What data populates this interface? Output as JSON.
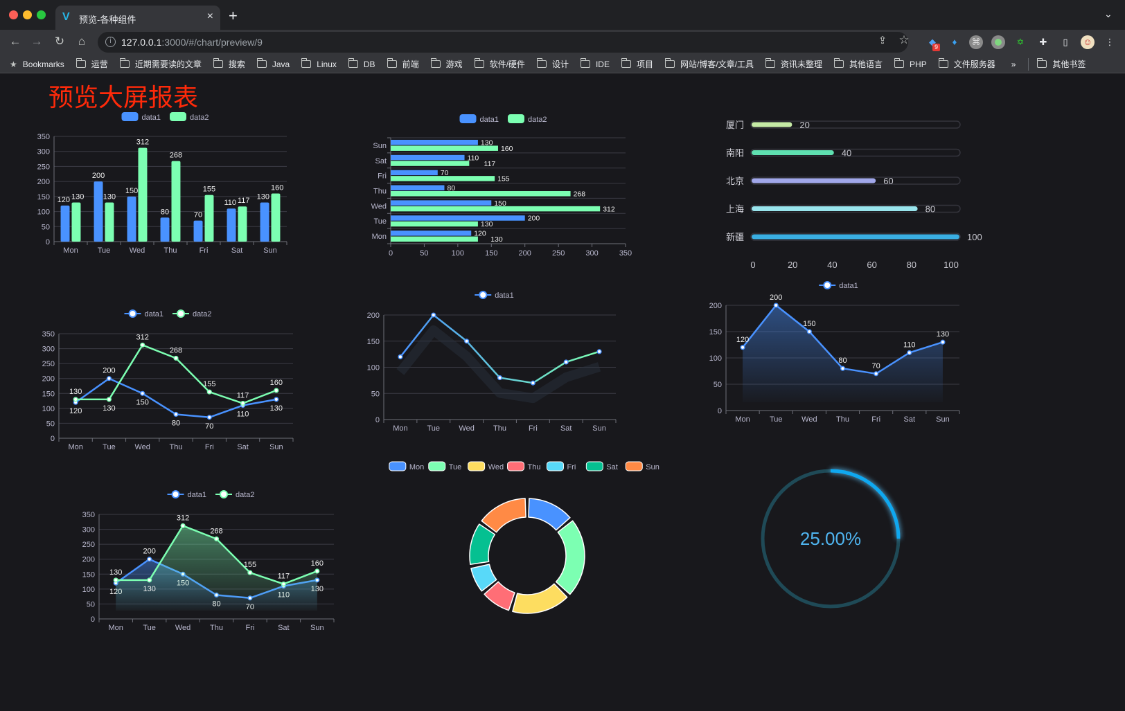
{
  "browser": {
    "tab_title": "预览-各种组件",
    "new_tab": "+",
    "close": "×",
    "url_host": "127.0.0.1",
    "url_rest": ":3000/#/chart/preview/9",
    "bookmarks_label": "Bookmarks",
    "bookmarks": [
      "运营",
      "近期需要读的文章",
      "搜索",
      "Java",
      "Linux",
      "DB",
      "前端",
      "游戏",
      "软件/硬件",
      "设计",
      "IDE",
      "项目",
      "网站/博客/文章/工具",
      "资讯未整理",
      "其他语言",
      "PHP",
      "文件服务器"
    ],
    "overflow": "»",
    "other_bookmarks": "其他书签",
    "extension_badge": "9"
  },
  "page": {
    "title": "预览大屏报表"
  },
  "chart_data": [
    {
      "type": "bar",
      "categories": [
        "Mon",
        "Tue",
        "Wed",
        "Thu",
        "Fri",
        "Sat",
        "Sun"
      ],
      "series": [
        {
          "name": "data1",
          "values": [
            120,
            200,
            150,
            80,
            70,
            110,
            130
          ],
          "color": "#4992ff"
        },
        {
          "name": "data2",
          "values": [
            130,
            130,
            312,
            268,
            155,
            117,
            160
          ],
          "color": "#7cffb2"
        }
      ],
      "ylim": [
        0,
        350
      ],
      "y_ticks": [
        0,
        50,
        100,
        150,
        200,
        250,
        300,
        350
      ],
      "grid": true,
      "legend": "top-center",
      "data_labels": true
    },
    {
      "type": "bar",
      "orientation": "horizontal",
      "categories": [
        "Mon",
        "Tue",
        "Wed",
        "Thu",
        "Fri",
        "Sat",
        "Sun"
      ],
      "series": [
        {
          "name": "data1",
          "values": [
            120,
            200,
            150,
            80,
            70,
            110,
            130
          ],
          "color": "#4992ff"
        },
        {
          "name": "data2",
          "values": [
            130,
            130,
            312,
            268,
            155,
            117,
            160
          ],
          "color": "#7cffb2"
        }
      ],
      "xlim": [
        0,
        350
      ],
      "x_ticks": [
        0,
        50,
        100,
        150,
        200,
        250,
        300,
        350
      ],
      "grid": true,
      "legend": "top-center",
      "data_labels": true
    },
    {
      "type": "bar",
      "orientation": "horizontal",
      "style": "progress",
      "categories": [
        "厦门",
        "南阳",
        "北京",
        "上海",
        "新疆"
      ],
      "values": [
        20,
        40,
        60,
        80,
        100
      ],
      "colors": [
        "#c6eba6",
        "#5fe0b1",
        "#a1a7ea",
        "#98e4ec",
        "#3aaee2"
      ],
      "xlim": [
        0,
        100
      ],
      "x_ticks": [
        0,
        20,
        40,
        60,
        80,
        100
      ],
      "data_labels": true
    },
    {
      "type": "line",
      "categories": [
        "Mon",
        "Tue",
        "Wed",
        "Thu",
        "Fri",
        "Sat",
        "Sun"
      ],
      "series": [
        {
          "name": "data1",
          "values": [
            120,
            200,
            150,
            80,
            70,
            110,
            130
          ],
          "color": "#4992ff"
        },
        {
          "name": "data2",
          "values": [
            130,
            130,
            312,
            268,
            155,
            117,
            160
          ],
          "color": "#7cffb2"
        }
      ],
      "ylim": [
        0,
        350
      ],
      "y_ticks": [
        0,
        50,
        100,
        150,
        200,
        250,
        300,
        350
      ],
      "grid": true,
      "legend": "top-center",
      "data_labels": true
    },
    {
      "type": "line",
      "style": "gradient-shadow",
      "categories": [
        "Mon",
        "Tue",
        "Wed",
        "Thu",
        "Fri",
        "Sat",
        "Sun"
      ],
      "series": [
        {
          "name": "data1",
          "values": [
            120,
            200,
            150,
            80,
            70,
            110,
            130
          ],
          "color": "#4992ff",
          "color_end": "#7cffb2"
        }
      ],
      "ylim": [
        0,
        200
      ],
      "y_ticks": [
        0,
        50,
        100,
        150,
        200
      ],
      "grid": true,
      "legend": "top-center",
      "data_labels": false
    },
    {
      "type": "area",
      "categories": [
        "Mon",
        "Tue",
        "Wed",
        "Thu",
        "Fri",
        "Sat",
        "Sun"
      ],
      "series": [
        {
          "name": "data1",
          "values": [
            120,
            200,
            150,
            80,
            70,
            110,
            130
          ],
          "color": "#4992ff"
        }
      ],
      "ylim": [
        0,
        200
      ],
      "y_ticks": [
        0,
        50,
        100,
        150,
        200
      ],
      "grid": true,
      "legend": "top-center",
      "data_labels": true
    },
    {
      "type": "pie",
      "style": "donut",
      "categories": [
        "Mon",
        "Tue",
        "Wed",
        "Thu",
        "Fri",
        "Sat",
        "Sun"
      ],
      "values": [
        120,
        200,
        150,
        80,
        70,
        110,
        130
      ],
      "colors": [
        "#4992ff",
        "#7cffb2",
        "#fddd60",
        "#ff6e76",
        "#58d9f9",
        "#05c091",
        "#ff8a45"
      ],
      "legend": "top-center"
    },
    {
      "type": "gauge",
      "style": "ring",
      "value": 25,
      "label": "25.00%",
      "colors": {
        "track": "#1f4a57",
        "progress": "#0fa8f0",
        "text": "#4fb4ef"
      }
    },
    {
      "type": "area",
      "categories": [
        "Mon",
        "Tue",
        "Wed",
        "Thu",
        "Fri",
        "Sat",
        "Sun"
      ],
      "series": [
        {
          "name": "data1",
          "values": [
            120,
            200,
            150,
            80,
            70,
            110,
            130
          ],
          "color": "#4992ff"
        },
        {
          "name": "data2",
          "values": [
            130,
            130,
            312,
            268,
            155,
            117,
            160
          ],
          "color": "#7cffb2"
        }
      ],
      "ylim": [
        0,
        350
      ],
      "y_ticks": [
        0,
        50,
        100,
        150,
        200,
        250,
        300,
        350
      ],
      "grid": true,
      "legend": "top-center",
      "data_labels": true
    }
  ]
}
